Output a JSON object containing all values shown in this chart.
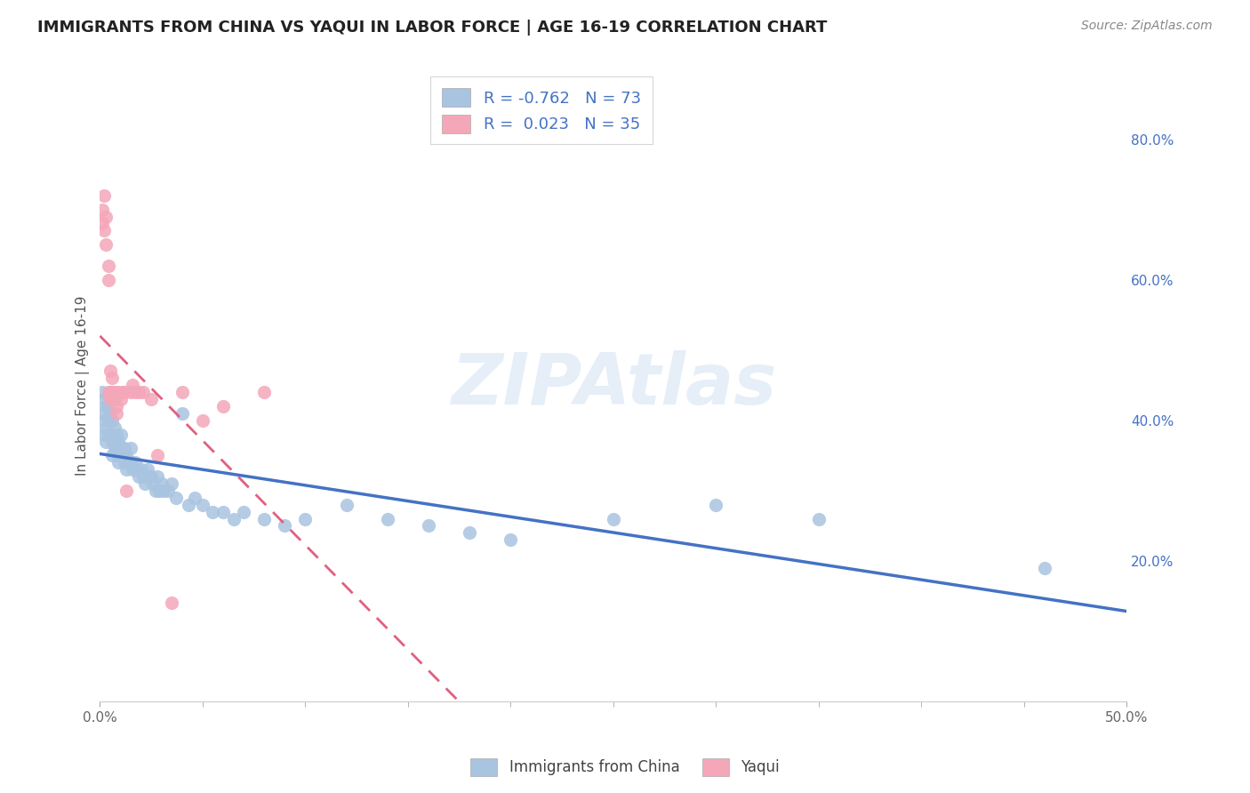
{
  "title": "IMMIGRANTS FROM CHINA VS YAQUI IN LABOR FORCE | AGE 16-19 CORRELATION CHART",
  "source": "Source: ZipAtlas.com",
  "ylabel": "In Labor Force | Age 16-19",
  "xlim": [
    0.0,
    0.5
  ],
  "ylim": [
    0.0,
    0.9
  ],
  "yticks_right": [
    0.2,
    0.4,
    0.6,
    0.8
  ],
  "yticklabels_right": [
    "20.0%",
    "40.0%",
    "60.0%",
    "80.0%"
  ],
  "xtick_minor_count": 9,
  "china_color": "#a8c4e0",
  "yaqui_color": "#f4a7b9",
  "china_line_color": "#4472c4",
  "yaqui_line_color": "#e06080",
  "china_R": -0.762,
  "china_N": 73,
  "yaqui_R": 0.023,
  "yaqui_N": 35,
  "watermark": "ZIPAtlas",
  "legend_china_label": "Immigrants from China",
  "legend_yaqui_label": "Yaqui",
  "china_x": [
    0.001,
    0.001,
    0.002,
    0.002,
    0.002,
    0.003,
    0.003,
    0.003,
    0.004,
    0.004,
    0.004,
    0.005,
    0.005,
    0.006,
    0.006,
    0.006,
    0.007,
    0.007,
    0.007,
    0.008,
    0.008,
    0.009,
    0.009,
    0.009,
    0.01,
    0.01,
    0.011,
    0.012,
    0.012,
    0.013,
    0.013,
    0.014,
    0.015,
    0.015,
    0.016,
    0.017,
    0.018,
    0.019,
    0.02,
    0.021,
    0.022,
    0.023,
    0.024,
    0.025,
    0.026,
    0.027,
    0.028,
    0.029,
    0.03,
    0.031,
    0.033,
    0.035,
    0.037,
    0.04,
    0.043,
    0.046,
    0.05,
    0.055,
    0.06,
    0.065,
    0.07,
    0.08,
    0.09,
    0.1,
    0.12,
    0.14,
    0.16,
    0.18,
    0.2,
    0.25,
    0.3,
    0.35,
    0.46
  ],
  "china_y": [
    0.44,
    0.41,
    0.43,
    0.4,
    0.38,
    0.42,
    0.39,
    0.37,
    0.42,
    0.4,
    0.38,
    0.41,
    0.38,
    0.4,
    0.37,
    0.35,
    0.39,
    0.37,
    0.36,
    0.38,
    0.36,
    0.37,
    0.35,
    0.34,
    0.38,
    0.36,
    0.35,
    0.36,
    0.34,
    0.35,
    0.33,
    0.34,
    0.36,
    0.34,
    0.33,
    0.34,
    0.33,
    0.32,
    0.33,
    0.32,
    0.31,
    0.33,
    0.32,
    0.32,
    0.31,
    0.3,
    0.32,
    0.3,
    0.31,
    0.3,
    0.3,
    0.31,
    0.29,
    0.41,
    0.28,
    0.29,
    0.28,
    0.27,
    0.27,
    0.26,
    0.27,
    0.26,
    0.25,
    0.26,
    0.28,
    0.26,
    0.25,
    0.24,
    0.23,
    0.26,
    0.28,
    0.26,
    0.19
  ],
  "yaqui_x": [
    0.001,
    0.001,
    0.002,
    0.002,
    0.003,
    0.003,
    0.004,
    0.004,
    0.004,
    0.005,
    0.005,
    0.005,
    0.006,
    0.006,
    0.007,
    0.007,
    0.008,
    0.008,
    0.009,
    0.01,
    0.011,
    0.012,
    0.013,
    0.015,
    0.016,
    0.017,
    0.019,
    0.021,
    0.025,
    0.028,
    0.035,
    0.04,
    0.05,
    0.06,
    0.08
  ],
  "yaqui_y": [
    0.7,
    0.68,
    0.72,
    0.67,
    0.65,
    0.69,
    0.62,
    0.6,
    0.44,
    0.47,
    0.44,
    0.43,
    0.46,
    0.44,
    0.44,
    0.43,
    0.42,
    0.41,
    0.44,
    0.43,
    0.44,
    0.44,
    0.3,
    0.44,
    0.45,
    0.44,
    0.44,
    0.44,
    0.43,
    0.35,
    0.14,
    0.44,
    0.4,
    0.42,
    0.44
  ]
}
